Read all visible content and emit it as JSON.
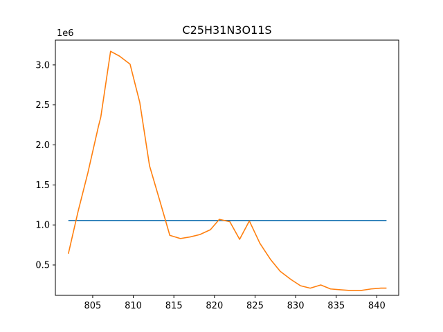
{
  "chart_data": {
    "type": "line",
    "title": "C25H31N3O11S",
    "xlabel": "",
    "ylabel": "",
    "y_offset_label": "1e6",
    "xlim": [
      800.4,
      842.7
    ],
    "ylim": [
      0.12,
      3.31
    ],
    "y_scale": 1000000,
    "grid": false,
    "x_ticks": [
      805,
      810,
      815,
      820,
      825,
      830,
      835,
      840
    ],
    "y_ticks": [
      0.5,
      1.0,
      1.5,
      2.0,
      2.5,
      3.0
    ],
    "y_tick_labels": [
      "0.5",
      "1.0",
      "1.5",
      "2.0",
      "2.5",
      "3.0"
    ],
    "series": [
      {
        "color": "#1f77b4",
        "x": [
          802.0,
          841.2
        ],
        "y": [
          1.055,
          1.055
        ]
      },
      {
        "color": "#ff7f0e",
        "x": [
          802.0,
          803.2,
          804.4,
          805.7,
          806.0,
          807.2,
          808.3,
          809.6,
          810.8,
          812.0,
          813.3,
          814.5,
          815.8,
          817.0,
          818.2,
          819.5,
          820.6,
          821.9,
          823.1,
          824.3,
          825.6,
          826.9,
          828.1,
          829.4,
          830.6,
          831.8,
          833.1,
          834.3,
          835.5,
          836.8,
          838.0,
          839.3,
          840.5,
          841.2
        ],
        "y": [
          0.64,
          1.17,
          1.65,
          2.23,
          2.35,
          3.17,
          3.11,
          3.01,
          2.53,
          1.74,
          1.29,
          0.87,
          0.83,
          0.85,
          0.88,
          0.94,
          1.07,
          1.04,
          0.82,
          1.05,
          0.77,
          0.57,
          0.42,
          0.32,
          0.24,
          0.21,
          0.25,
          0.2,
          0.19,
          0.18,
          0.18,
          0.2,
          0.21,
          0.21
        ]
      }
    ]
  }
}
